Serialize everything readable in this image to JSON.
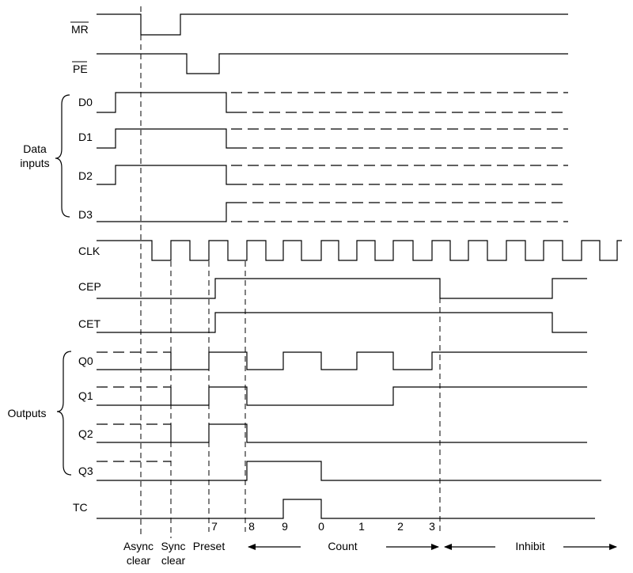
{
  "signals": {
    "mr": "MR",
    "pe": "PE",
    "d0": "D0",
    "d1": "D1",
    "d2": "D2",
    "d3": "D3",
    "clk": "CLK",
    "cep": "CEP",
    "cet": "CET",
    "q0": "Q0",
    "q1": "Q1",
    "q2": "Q2",
    "q3": "Q3",
    "tc": "TC"
  },
  "groups": {
    "data_inputs": [
      "Data",
      "inputs"
    ],
    "outputs": "Outputs"
  },
  "counts": [
    "7",
    "8",
    "9",
    "0",
    "1",
    "2",
    "3"
  ],
  "phases": {
    "async": [
      "Async",
      "clear"
    ],
    "sync": [
      "Sync",
      "clear"
    ],
    "preset": "Preset",
    "count": "Count",
    "inhibit": "Inhibit"
  }
}
